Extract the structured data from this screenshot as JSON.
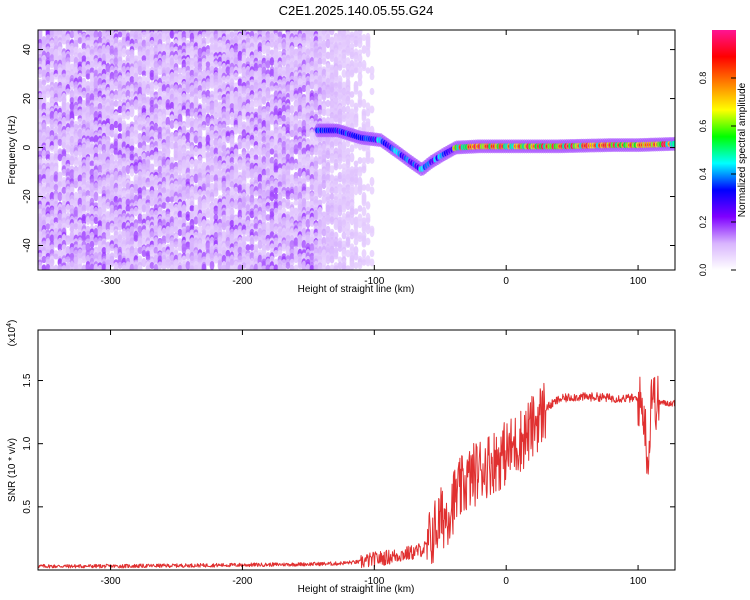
{
  "figure": {
    "title": "C2E1.2025.140.05.55.G24"
  },
  "chart_data": [
    {
      "type": "heatmap",
      "xlabel": "Height of straight line (km)",
      "ylabel": "Frequency (Hz)",
      "xlim": [
        -355,
        128
      ],
      "ylim": [
        -50,
        48
      ],
      "x_ticks": [
        -300,
        -200,
        -100,
        0,
        100
      ],
      "x_tick_labels": [
        "-300",
        "-200",
        "-100",
        "0",
        "100"
      ],
      "y_ticks": [
        -40,
        -20,
        0,
        20,
        40
      ],
      "y_tick_labels": [
        "-40",
        "-20",
        "0",
        "20",
        "40"
      ],
      "noise_region_x": [
        -355,
        -103
      ],
      "ridge": [
        {
          "x": -143,
          "freq": 7
        },
        {
          "x": -128,
          "freq": 7
        },
        {
          "x": -110,
          "freq": 4
        },
        {
          "x": -95,
          "freq": 3
        },
        {
          "x": -82,
          "freq": -2
        },
        {
          "x": -72,
          "freq": -6
        },
        {
          "x": -64,
          "freq": -9
        },
        {
          "x": -57,
          "freq": -6
        },
        {
          "x": -48,
          "freq": -3
        },
        {
          "x": -38,
          "freq": 0
        },
        {
          "x": -20,
          "freq": 0.5
        },
        {
          "x": 0,
          "freq": 0.5
        },
        {
          "x": 40,
          "freq": 0.5
        },
        {
          "x": 80,
          "freq": 1
        },
        {
          "x": 100,
          "freq": 1
        },
        {
          "x": 128,
          "freq": 1.5
        }
      ],
      "colorbar": {
        "label": "Normalized spectral amplitude",
        "range": [
          0,
          1
        ],
        "ticks": [
          0.0,
          0.2,
          0.4,
          0.6,
          0.8
        ],
        "tick_labels": [
          "0.0",
          "0.2",
          "0.4",
          "0.6",
          "0.8"
        ],
        "colormap": [
          "#ffffff",
          "#d8b4fe",
          "#7f00ff",
          "#0000ff",
          "#00ffff",
          "#00ff00",
          "#ffff00",
          "#ff8000",
          "#ff0000",
          "#ff1493"
        ]
      }
    },
    {
      "type": "line",
      "xlabel": "Height of straight line (km)",
      "ylabel": "SNR (10 * v/v)",
      "y_multiplier": "(x10",
      "y_multiplier_exp": "4",
      "xlim": [
        -355,
        128
      ],
      "ylim": [
        0,
        19000
      ],
      "x_ticks": [
        -300,
        -200,
        -100,
        0,
        100
      ],
      "x_tick_labels": [
        "-300",
        "-200",
        "-100",
        "0",
        "100"
      ],
      "y_ticks": [
        5000,
        10000,
        15000
      ],
      "y_tick_labels": [
        "0.5",
        "1.0",
        "1.5"
      ],
      "color": "#e03030",
      "series": [
        {
          "x": [
            -355,
            -300,
            -250,
            -200,
            -160,
            -130,
            -110,
            -100,
            -90,
            -80,
            -70,
            -60,
            -55,
            -50,
            -45,
            -40,
            -35,
            -30,
            -25,
            -20,
            -15,
            -10,
            -5,
            0,
            5,
            10,
            15,
            20,
            25,
            30,
            40,
            50,
            60,
            70,
            80,
            90,
            95,
            100,
            104,
            106,
            108,
            110,
            113,
            116,
            120,
            128
          ],
          "y": [
            300,
            300,
            350,
            400,
            450,
            500,
            650,
            850,
            1000,
            1200,
            1400,
            1800,
            3000,
            4000,
            4400,
            5500,
            6300,
            7000,
            7500,
            8000,
            8300,
            8600,
            8900,
            9300,
            9700,
            10200,
            10700,
            11300,
            12100,
            12800,
            13500,
            13700,
            13700,
            13700,
            13600,
            13600,
            13600,
            13500,
            12800,
            10500,
            8200,
            14500,
            13200,
            13300,
            13200,
            13200
          ]
        }
      ]
    }
  ]
}
